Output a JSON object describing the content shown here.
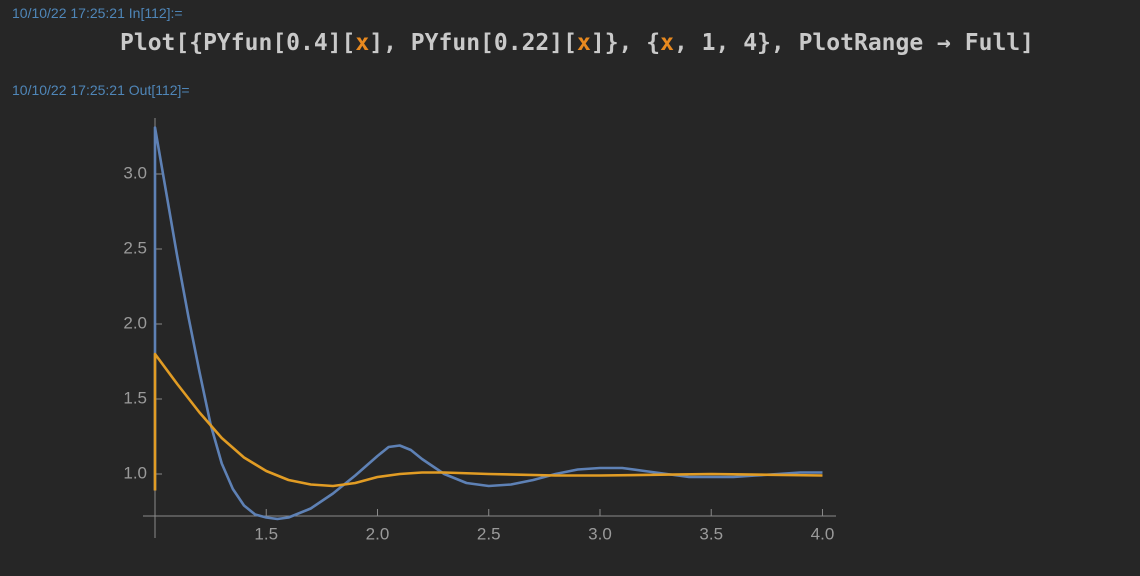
{
  "input_label": "10/10/22 17:25:21 In[112]:=",
  "input_code": [
    {
      "text": "Plot[{PYfun[0.4][",
      "color": "#c9c9c9"
    },
    {
      "text": "x",
      "color": "#e8891f"
    },
    {
      "text": "], PYfun[0.22][",
      "color": "#c9c9c9"
    },
    {
      "text": "x",
      "color": "#e8891f"
    },
    {
      "text": "]}, {",
      "color": "#c9c9c9"
    },
    {
      "text": "x",
      "color": "#e8891f"
    },
    {
      "text": ", 1, 4}, PlotRange → Full]",
      "color": "#c9c9c9"
    }
  ],
  "output_label": "10/10/22 17:25:21 Out[112]=",
  "chart_data": {
    "type": "line",
    "xlim": [
      1,
      4.05
    ],
    "ylim": [
      0.72,
      3.32
    ],
    "xticks": [
      1.5,
      {
        "value": 2,
        "label": "2.0"
      },
      2.5,
      {
        "value": 3,
        "label": "3.0"
      },
      3.5,
      {
        "value": 4,
        "label": "4.0"
      }
    ],
    "yticks": [
      {
        "value": 1,
        "label": "1.0"
      },
      1.5,
      {
        "value": 2,
        "label": "2.0"
      },
      2.5,
      {
        "value": 3,
        "label": "3.0"
      }
    ],
    "series": [
      {
        "color": "#5e81b5",
        "x": [
          1,
          1,
          1.05,
          1.1,
          1.15,
          1.2,
          1.25,
          1.3,
          1.35,
          1.4,
          1.45,
          1.5,
          1.55,
          1.6,
          1.7,
          1.8,
          1.9,
          2.0,
          2.05,
          2.1,
          2.15,
          2.2,
          2.3,
          2.4,
          2.5,
          2.6,
          2.7,
          2.8,
          2.9,
          3.0,
          3.1,
          3.2,
          3.3,
          3.4,
          3.5,
          3.6,
          3.7,
          3.8,
          3.9,
          4.0
        ],
        "values": [
          0.89,
          3.31,
          2.88,
          2.45,
          2.05,
          1.68,
          1.33,
          1.07,
          0.9,
          0.79,
          0.73,
          0.71,
          0.7,
          0.71,
          0.77,
          0.87,
          0.99,
          1.12,
          1.18,
          1.19,
          1.16,
          1.1,
          1.0,
          0.94,
          0.92,
          0.93,
          0.96,
          1.0,
          1.03,
          1.04,
          1.04,
          1.02,
          1.0,
          0.98,
          0.98,
          0.98,
          0.99,
          1.0,
          1.01,
          1.01
        ]
      },
      {
        "color": "#e19c24",
        "x": [
          1,
          1,
          1.1,
          1.2,
          1.3,
          1.4,
          1.5,
          1.6,
          1.7,
          1.8,
          1.9,
          2.0,
          2.1,
          2.2,
          2.3,
          2.5,
          2.8,
          3.0,
          3.5,
          4.0
        ],
        "values": [
          0.89,
          1.8,
          1.6,
          1.41,
          1.24,
          1.11,
          1.02,
          0.96,
          0.93,
          0.92,
          0.94,
          0.98,
          1.0,
          1.01,
          1.01,
          1.0,
          0.99,
          0.99,
          1.0,
          0.99
        ]
      }
    ]
  }
}
